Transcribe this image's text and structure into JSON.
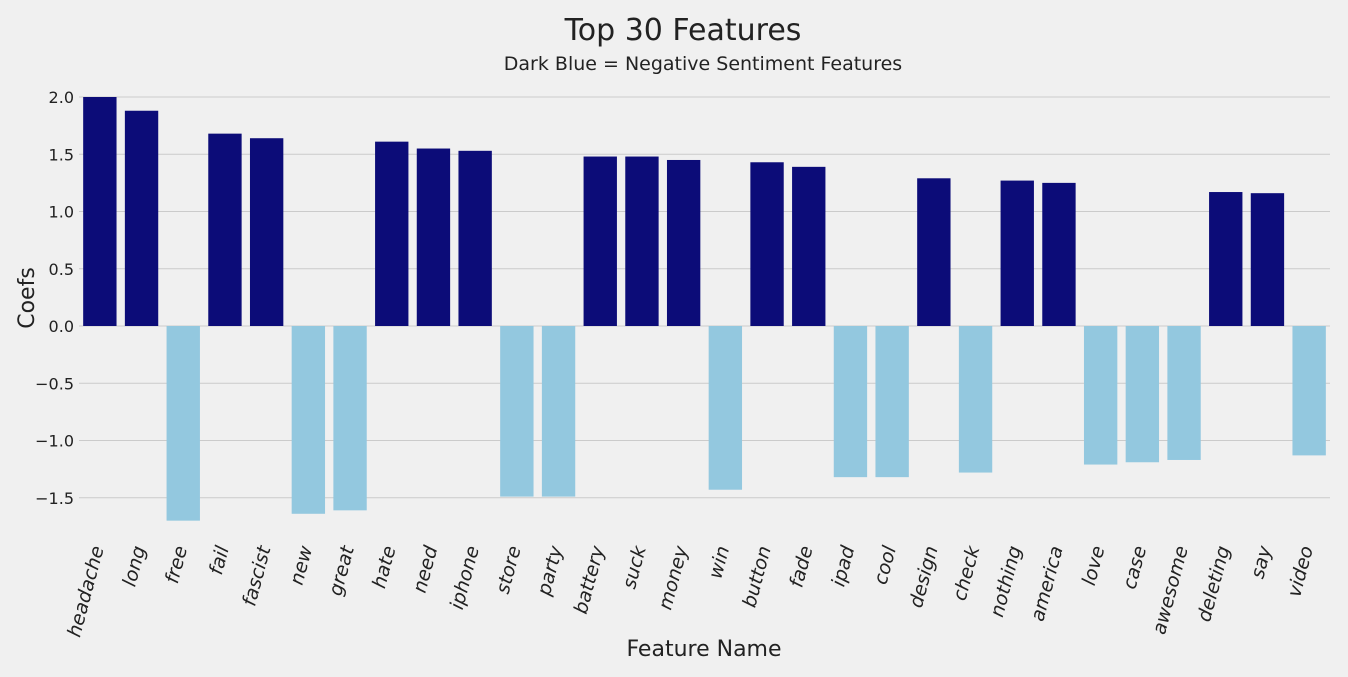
{
  "chart_data": {
    "type": "bar",
    "title": "Top 30 Features",
    "subtitle": "Dark Blue = Negative Sentiment Features",
    "xlabel": "Feature Name",
    "ylabel": "Coefs",
    "ylim": [
      -1.82,
      2.0
    ],
    "yticks": [
      -1.5,
      -1.0,
      -0.5,
      0.0,
      0.5,
      1.0,
      1.5,
      2.0
    ],
    "ytick_labels": [
      "−1.5",
      "−1.0",
      "−0.5",
      "0.0",
      "0.5",
      "1.0",
      "1.5",
      "2.0"
    ],
    "grid": true,
    "colors": {
      "negative_sentiment": "#0c0c78",
      "positive_sentiment": "#93c8df"
    },
    "categories": [
      "headache",
      "long",
      "free",
      "fail",
      "fascist",
      "new",
      "great",
      "hate",
      "need",
      "iphone",
      "store",
      "party",
      "battery",
      "suck",
      "money",
      "win",
      "button",
      "fade",
      "ipad",
      "cool",
      "design",
      "check",
      "nothing",
      "america",
      "love",
      "case",
      "awesome",
      "deleting",
      "say",
      "video"
    ],
    "values": [
      2.0,
      1.88,
      -1.7,
      1.68,
      1.64,
      -1.64,
      -1.61,
      1.61,
      1.55,
      1.53,
      -1.49,
      -1.49,
      1.48,
      1.48,
      1.45,
      -1.43,
      1.43,
      1.39,
      -1.32,
      -1.32,
      1.29,
      -1.28,
      1.27,
      1.25,
      -1.21,
      -1.19,
      -1.17,
      1.17,
      1.16,
      -1.13
    ]
  }
}
